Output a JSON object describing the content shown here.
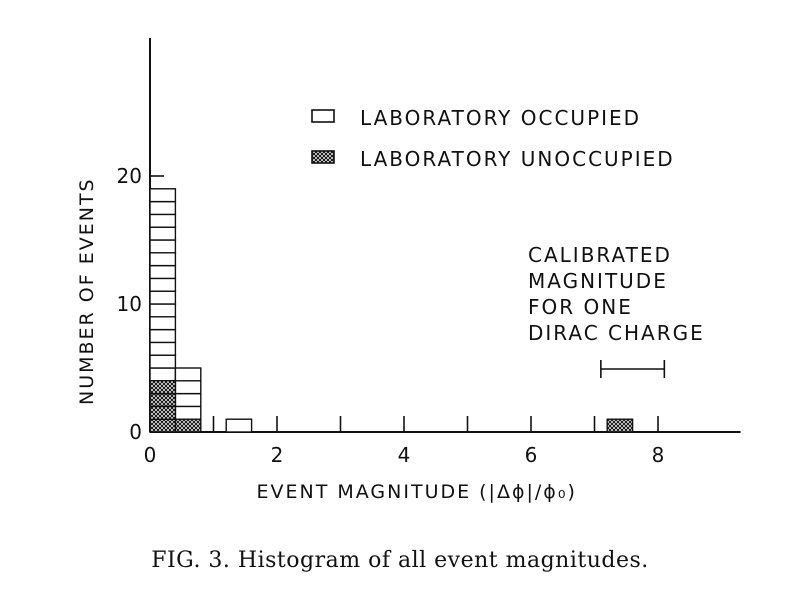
{
  "chart_data": {
    "type": "bar",
    "xlabel": "EVENT MAGNITUDE (|Δϕ|/ϕ₀)",
    "ylabel": "NUMBER OF EVENTS",
    "xlim": [
      0,
      9.3
    ],
    "ylim": [
      0,
      30
    ],
    "x_ticks": [
      0,
      2,
      4,
      6,
      8
    ],
    "x_minor_ticks": [
      1,
      3,
      5,
      7
    ],
    "y_ticks": [
      0,
      10,
      20
    ],
    "bin_width": 0.4,
    "series": [
      {
        "name": "LABORATORY OCCUPIED",
        "pattern": "open",
        "bins": [
          {
            "x_start": 0.0,
            "count": 19
          },
          {
            "x_start": 0.4,
            "count": 5
          },
          {
            "x_start": 1.2,
            "count": 1
          }
        ]
      },
      {
        "name": "LABORATORY UNOCCUPIED",
        "pattern": "crosshatch",
        "bins": [
          {
            "x_start": 0.0,
            "count": 4
          },
          {
            "x_start": 0.4,
            "count": 1
          },
          {
            "x_start": 7.2,
            "count": 1
          }
        ]
      }
    ],
    "annotation": {
      "lines": [
        "CALIBRATED",
        "MAGNITUDE",
        "FOR ONE",
        "DIRAC CHARGE"
      ],
      "range": [
        7.1,
        8.1
      ]
    }
  },
  "caption": "FIG. 3.  Histogram of all event magnitudes."
}
